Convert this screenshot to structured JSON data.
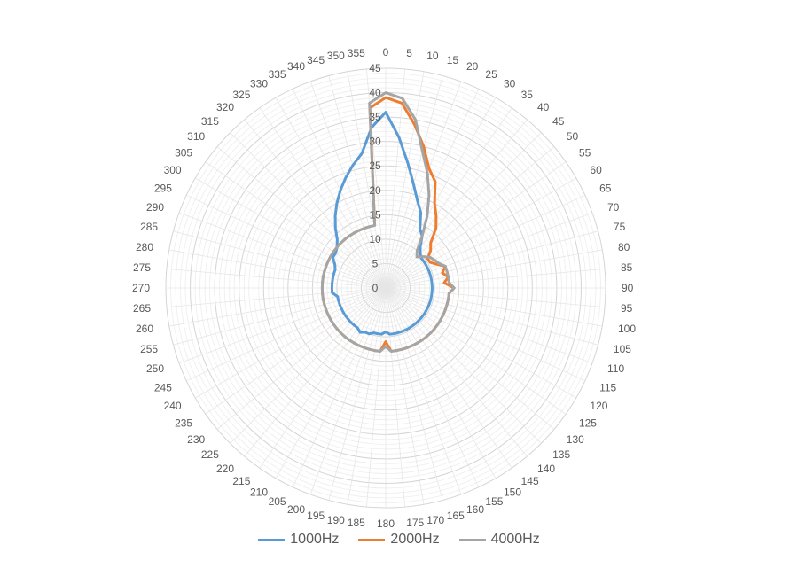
{
  "chart_data": {
    "type": "radar",
    "title": "",
    "angle_labels": [
      "0",
      "5",
      "10",
      "15",
      "20",
      "25",
      "30",
      "35",
      "40",
      "45",
      "50",
      "55",
      "60",
      "65",
      "70",
      "75",
      "80",
      "85",
      "90",
      "95",
      "100",
      "105",
      "110",
      "115",
      "120",
      "125",
      "130",
      "135",
      "140",
      "145",
      "150",
      "155",
      "160",
      "165",
      "170",
      "175",
      "180",
      "185",
      "190",
      "195",
      "200",
      "205",
      "210",
      "215",
      "220",
      "225",
      "230",
      "235",
      "240",
      "245",
      "250",
      "255",
      "260",
      "265",
      "270",
      "275",
      "280",
      "285",
      "290",
      "295",
      "300",
      "305",
      "310",
      "315",
      "320",
      "325",
      "330",
      "335",
      "340",
      "345",
      "350",
      "355"
    ],
    "radial_ticks": [
      "0",
      "5",
      "10",
      "15",
      "20",
      "25",
      "30",
      "35",
      "40",
      "45"
    ],
    "rlim": [
      0,
      45
    ],
    "grid": true,
    "legend_position": "bottom",
    "series": [
      {
        "name": "1000Hz",
        "color": "#5b9bd5",
        "values": [
          36,
          31,
          26,
          22,
          19,
          17,
          14,
          13,
          11,
          10,
          9.5,
          9.5,
          9.5,
          9.5,
          9.5,
          9.5,
          9.5,
          9.5,
          9.5,
          9.5,
          9.5,
          9.5,
          9.5,
          9.5,
          9.5,
          9.5,
          9.5,
          9.5,
          9.5,
          9.5,
          9.5,
          9.5,
          9.5,
          9.5,
          9.5,
          9.5,
          9,
          9.5,
          9.5,
          9.5,
          10,
          10,
          10.5,
          10,
          10,
          10,
          10,
          10,
          10,
          10,
          10,
          10,
          10,
          11,
          11,
          11,
          11,
          11,
          11,
          11.5,
          12.5,
          12.5,
          13,
          14,
          16,
          18,
          20,
          22,
          24,
          26,
          28,
          33
        ]
      },
      {
        "name": "2000Hz",
        "color": "#ed7d31",
        "values": [
          39,
          38,
          34,
          30,
          26,
          24,
          20,
          18,
          16,
          13,
          12,
          10.5,
          10.5,
          11.5,
          13,
          12,
          13,
          12,
          14,
          13,
          13,
          13,
          13,
          13,
          13,
          13,
          13,
          13,
          13,
          13,
          13,
          13,
          13,
          13,
          13,
          13,
          11,
          13,
          13,
          13,
          13,
          13,
          13,
          13,
          13,
          13,
          13,
          13,
          13,
          13,
          13,
          13,
          13,
          13,
          13,
          13,
          13,
          13,
          13,
          13,
          13,
          13,
          13,
          13,
          13,
          13,
          13,
          13,
          13,
          13,
          13,
          37
        ]
      },
      {
        "name": "4000Hz",
        "color": "#a5a5a5",
        "values": [
          40,
          39,
          35,
          29,
          25,
          21,
          17,
          13,
          10,
          9,
          10,
          11,
          11.5,
          12,
          13,
          13,
          13,
          13,
          14,
          13,
          13,
          13,
          13,
          13,
          13,
          13,
          13,
          13,
          13,
          13,
          13,
          13,
          13,
          13,
          13,
          13,
          12,
          13,
          13,
          13,
          13,
          13,
          13,
          13,
          13,
          13,
          13,
          13,
          13,
          13,
          13,
          13,
          13,
          13,
          13,
          13,
          13,
          13,
          13,
          13,
          13,
          13,
          13,
          13,
          13,
          13,
          13,
          13,
          13,
          13,
          13,
          38
        ]
      }
    ]
  }
}
